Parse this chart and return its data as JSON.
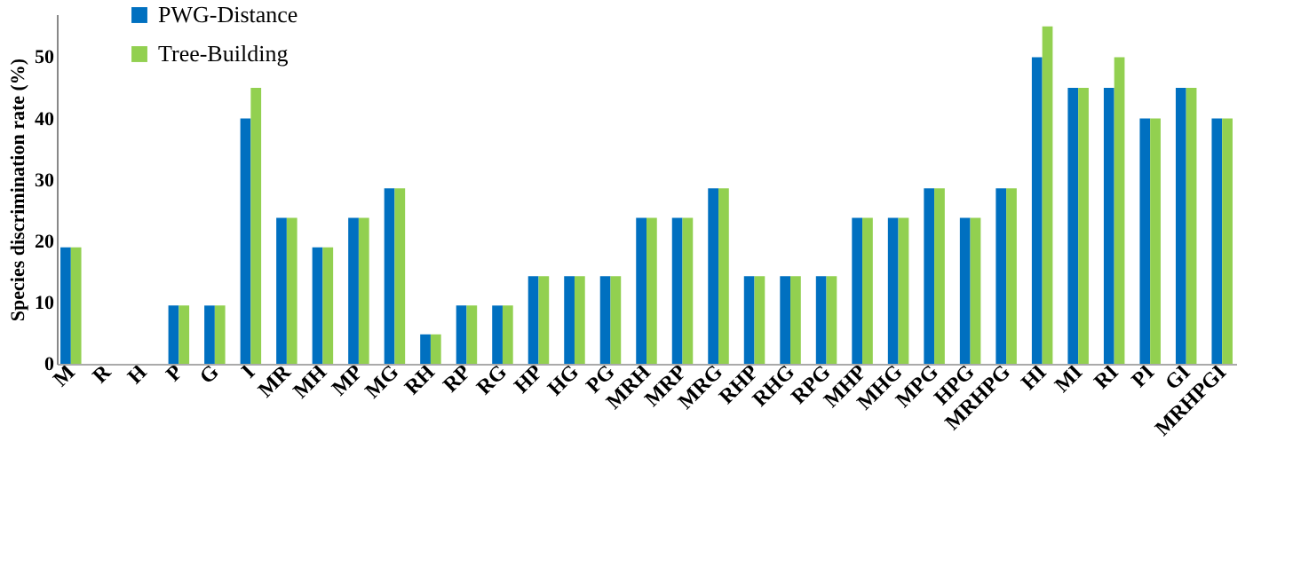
{
  "chart_data": {
    "type": "bar",
    "ylabel": "Species discrimination rate (%)",
    "categories": [
      "M",
      "R",
      "H",
      "P",
      "G",
      "I",
      "MR",
      "MH",
      "MP",
      "MG",
      "RH",
      "RP",
      "RG",
      "HP",
      "HG",
      "PG",
      "MRH",
      "MRP",
      "MRG",
      "RHP",
      "RHG",
      "RPG",
      "MHP",
      "MHG",
      "MPG",
      "HPG",
      "MRHPG",
      "HI",
      "MI",
      "RI",
      "PI",
      "GI",
      "MRHPGI"
    ],
    "series": [
      {
        "name": "PWG-Distance",
        "color": "#0070c0",
        "values": [
          19,
          0,
          0,
          9.5,
          9.5,
          40,
          23.8,
          19,
          23.8,
          28.6,
          4.8,
          9.5,
          9.5,
          14.3,
          14.3,
          14.3,
          23.8,
          23.8,
          28.6,
          14.3,
          14.3,
          14.3,
          23.8,
          23.8,
          28.6,
          23.8,
          28.6,
          50,
          45,
          45,
          40,
          45,
          40
        ]
      },
      {
        "name": "Tree-Building",
        "color": "#92d050",
        "values": [
          19,
          0,
          0,
          9.5,
          9.5,
          45,
          23.8,
          19,
          23.8,
          28.6,
          4.8,
          9.5,
          9.5,
          14.3,
          14.3,
          14.3,
          23.8,
          23.8,
          28.6,
          14.3,
          14.3,
          14.3,
          23.8,
          23.8,
          28.6,
          23.8,
          28.6,
          55,
          45,
          50,
          40,
          45,
          40
        ]
      }
    ],
    "ylim": [
      0,
      57
    ],
    "yticks": [
      0,
      10,
      20,
      30,
      40,
      50
    ],
    "grid": false,
    "legend": "top left"
  }
}
